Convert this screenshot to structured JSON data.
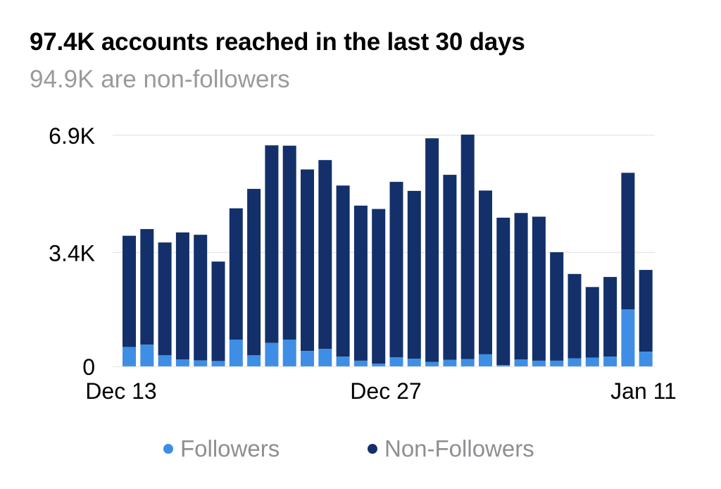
{
  "header": {
    "title": "97.4K accounts reached in the last 30 days",
    "subtitle": "94.9K are non-followers"
  },
  "legend": {
    "followers_label": "Followers",
    "non_followers_label": "Non-Followers"
  },
  "colors": {
    "followers": "#3e8ee5",
    "non_followers": "#13306a",
    "grid": "#e5e5ea",
    "axis_text": "#000000",
    "legend_text": "#8e8e93"
  },
  "chart_data": {
    "type": "bar",
    "stacked": true,
    "yticks": [
      "0",
      "3.4K",
      "6.9K"
    ],
    "ytick_values": [
      0,
      3400,
      6900
    ],
    "ylim": [
      0,
      6900
    ],
    "xticks": [
      "Dec 13",
      "Dec 27",
      "Jan 11"
    ],
    "grid": true,
    "legend_position": "bottom",
    "series": [
      {
        "name": "Followers",
        "values": [
          580,
          650,
          330,
          210,
          180,
          160,
          800,
          330,
          700,
          800,
          460,
          520,
          290,
          170,
          80,
          270,
          230,
          130,
          200,
          220,
          360,
          40,
          210,
          170,
          170,
          240,
          260,
          290,
          1700,
          440
        ]
      },
      {
        "name": "Non-Followers",
        "values": [
          3320,
          3450,
          3370,
          3790,
          3750,
          2970,
          3920,
          4970,
          5900,
          5790,
          5420,
          5640,
          5110,
          4630,
          4620,
          5240,
          5010,
          6680,
          5520,
          6700,
          4890,
          4400,
          4370,
          4300,
          3240,
          2520,
          2110,
          2380,
          4080,
          2440
        ]
      }
    ]
  }
}
